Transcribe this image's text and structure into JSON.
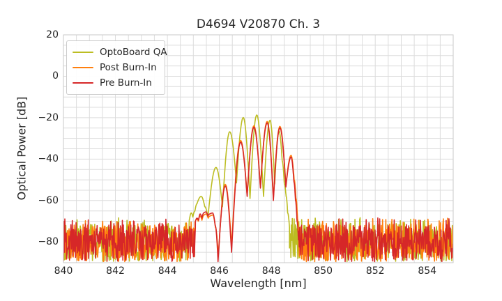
{
  "title": "D4694 V20870 Ch. 3",
  "axes": {
    "xlabel": "Wavelength [nm]",
    "ylabel": "Optical Power [dB]",
    "xlim": [
      840,
      855
    ],
    "ylim": [
      -90,
      20
    ],
    "xticks": {
      "values": [
        840,
        842,
        844,
        846,
        848,
        850,
        852,
        854
      ],
      "labels": [
        "840",
        "842",
        "844",
        "846",
        "848",
        "850",
        "852",
        "854"
      ]
    },
    "yticks": {
      "values": [
        20,
        0,
        -20,
        -40,
        -60,
        -80
      ],
      "labels": [
        "20",
        "0",
        "−20",
        "−40",
        "−60",
        "−80"
      ]
    },
    "grid": {
      "x_step": 0.5,
      "y_step": 5,
      "color": "#dcdcdc",
      "on": true
    },
    "spine_color": "#c8c8c8",
    "background": "#ffffff"
  },
  "legend": {
    "position": "upper-left",
    "items": [
      {
        "label": "OptoBoard QA",
        "color": "#bcbd22"
      },
      {
        "label": "Post Burn-In",
        "color": "#ff7f0e"
      },
      {
        "label": "Pre Burn-In",
        "color": "#d62728"
      }
    ]
  },
  "chart_data": {
    "type": "line",
    "title": "D4694 V20870 Ch. 3",
    "xlabel": "Wavelength [nm]",
    "ylabel": "Optical Power [dB]",
    "xlim": [
      840,
      855
    ],
    "ylim": [
      -90,
      20
    ],
    "noise_floor": {
      "step": 0.018,
      "min": -89.5,
      "max": -71.5,
      "spike_prob": 0.05,
      "spike_boost": 3.2
    },
    "series": [
      {
        "name": "OptoBoard QA",
        "color": "#bcbd22",
        "seed": 7,
        "segments": [
          {
            "type": "noise",
            "from": 840.0,
            "to": 844.85
          },
          {
            "type": "anchors",
            "points": [
              [
                844.85,
                -69
              ],
              [
                844.92,
                -66
              ],
              [
                844.98,
                -68
              ],
              [
                845.06,
                -65
              ],
              [
                845.14,
                -61.5
              ],
              [
                845.3,
                -58
              ],
              [
                845.44,
                -63
              ],
              [
                845.56,
                -68
              ],
              [
                845.87,
                -44
              ],
              [
                846.12,
                -63
              ],
              [
                846.4,
                -26.8
              ],
              [
                846.66,
                -51.5
              ],
              [
                846.92,
                -19.9
              ],
              [
                847.18,
                -59
              ],
              [
                847.44,
                -18.7
              ],
              [
                847.7,
                -58
              ],
              [
                847.95,
                -21.2
              ],
              [
                848.13,
                -52
              ],
              [
                848.3,
                -26.5
              ],
              [
                848.42,
                -41
              ],
              [
                848.5,
                -52
              ],
              [
                848.57,
                -58
              ],
              [
                848.63,
                -66
              ],
              [
                848.7,
                -73
              ]
            ]
          },
          {
            "type": "noise",
            "from": 848.7,
            "to": 855.0
          }
        ]
      },
      {
        "name": "Post Burn-In",
        "color": "#ff7f0e",
        "seed": 1234,
        "segments": [
          {
            "type": "noise",
            "from": 840.0,
            "to": 845.06
          },
          {
            "type": "anchors",
            "points": [
              [
                845.06,
                -70.5
              ],
              [
                845.13,
                -69
              ],
              [
                845.19,
                -70
              ],
              [
                845.26,
                -67.5
              ],
              [
                845.33,
                -69.5
              ],
              [
                845.41,
                -67
              ],
              [
                845.49,
                -66.5
              ],
              [
                845.57,
                -68.5
              ],
              [
                845.64,
                -67.5
              ],
              [
                845.75,
                -67
              ],
              [
                845.85,
                -73
              ],
              [
                845.96,
                -87
              ],
              [
                846.23,
                -52.2
              ],
              [
                846.47,
                -82
              ],
              [
                846.82,
                -31.0
              ],
              [
                847.07,
                -57.5
              ],
              [
                847.33,
                -23.9
              ],
              [
                847.58,
                -53.5
              ],
              [
                847.84,
                -21.8
              ],
              [
                848.08,
                -59
              ],
              [
                848.33,
                -24.2
              ],
              [
                848.56,
                -52.8
              ],
              [
                848.76,
                -38.2
              ],
              [
                848.88,
                -50
              ],
              [
                848.95,
                -59
              ],
              [
                849.01,
                -69
              ],
              [
                849.06,
                -77
              ]
            ]
          },
          {
            "type": "noise",
            "from": 849.06,
            "to": 855.0
          }
        ]
      },
      {
        "name": "Pre Burn-In",
        "color": "#d62728",
        "seed": 987654,
        "segments": [
          {
            "type": "noise",
            "from": 840.0,
            "to": 845.08
          },
          {
            "type": "anchors",
            "points": [
              [
                845.08,
                -70
              ],
              [
                845.14,
                -68.5
              ],
              [
                845.2,
                -69.5
              ],
              [
                845.26,
                -66.5
              ],
              [
                845.33,
                -68.5
              ],
              [
                845.4,
                -66
              ],
              [
                845.48,
                -65.5
              ],
              [
                845.56,
                -67.5
              ],
              [
                845.63,
                -66.5
              ],
              [
                845.74,
                -66
              ],
              [
                845.84,
                -72
              ],
              [
                845.95,
                -89.5
              ],
              [
                846.23,
                -53
              ],
              [
                846.47,
                -85
              ],
              [
                846.82,
                -31.8
              ],
              [
                847.07,
                -58
              ],
              [
                847.33,
                -24.6
              ],
              [
                847.58,
                -54
              ],
              [
                847.84,
                -22.5
              ],
              [
                848.08,
                -60
              ],
              [
                848.33,
                -24.9
              ],
              [
                848.56,
                -53.5
              ],
              [
                848.76,
                -39
              ],
              [
                848.87,
                -51
              ],
              [
                848.93,
                -60
              ],
              [
                848.99,
                -70
              ],
              [
                849.04,
                -78
              ]
            ]
          },
          {
            "type": "noise",
            "from": 849.04,
            "to": 855.0
          }
        ]
      }
    ]
  }
}
